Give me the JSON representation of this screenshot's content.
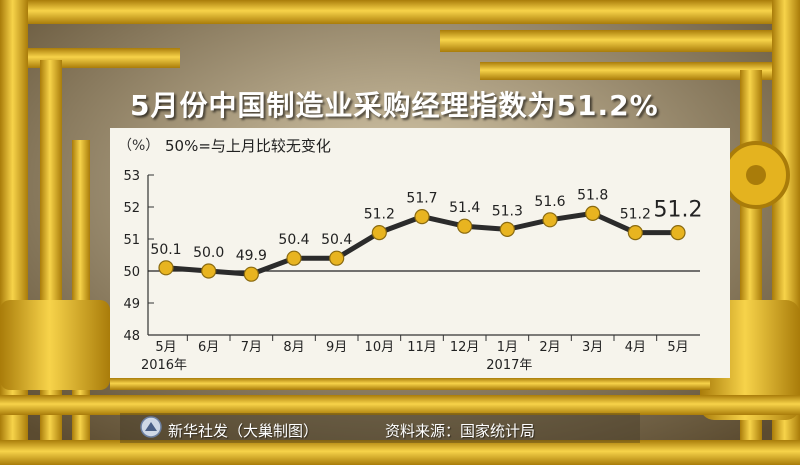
{
  "title": "5月份中国制造业采购经理指数为51.2%",
  "unit_label": "（%）",
  "note": "50%=与上月比较无变化",
  "footer": {
    "credit": "新华社发（大巢制图）",
    "source": "资料来源：国家统计局"
  },
  "colors": {
    "line": "#2b2b2b",
    "marker": "#e8b420",
    "pipe": "#e4b31f",
    "panel": "#f6f4ec"
  },
  "chart_data": {
    "type": "line",
    "title": "5月份中国制造业采购经理指数为51.2%",
    "ylabel": "（%）",
    "xlabel": "",
    "categories": [
      "5月",
      "6月",
      "7月",
      "8月",
      "9月",
      "10月",
      "11月",
      "12月",
      "1月",
      "2月",
      "3月",
      "4月",
      "5月"
    ],
    "year_labels": [
      "2016年",
      "2017年"
    ],
    "values": [
      50.1,
      50.0,
      49.9,
      50.4,
      50.4,
      51.2,
      51.7,
      51.4,
      51.3,
      51.6,
      51.8,
      51.2,
      51.2
    ],
    "value_labels": [
      "50.1",
      "50.0",
      "49.9",
      "50.4",
      "50.4",
      "51.2",
      "51.7",
      "51.4",
      "51.3",
      "51.6",
      "51.8",
      "51.2",
      "51.2"
    ],
    "ylim": [
      48,
      53
    ],
    "yticks": [
      "48",
      "49",
      "50",
      "51",
      "52",
      "53"
    ],
    "reference_line": 50,
    "annotation": "50%=与上月比较无变化",
    "grid": false
  }
}
